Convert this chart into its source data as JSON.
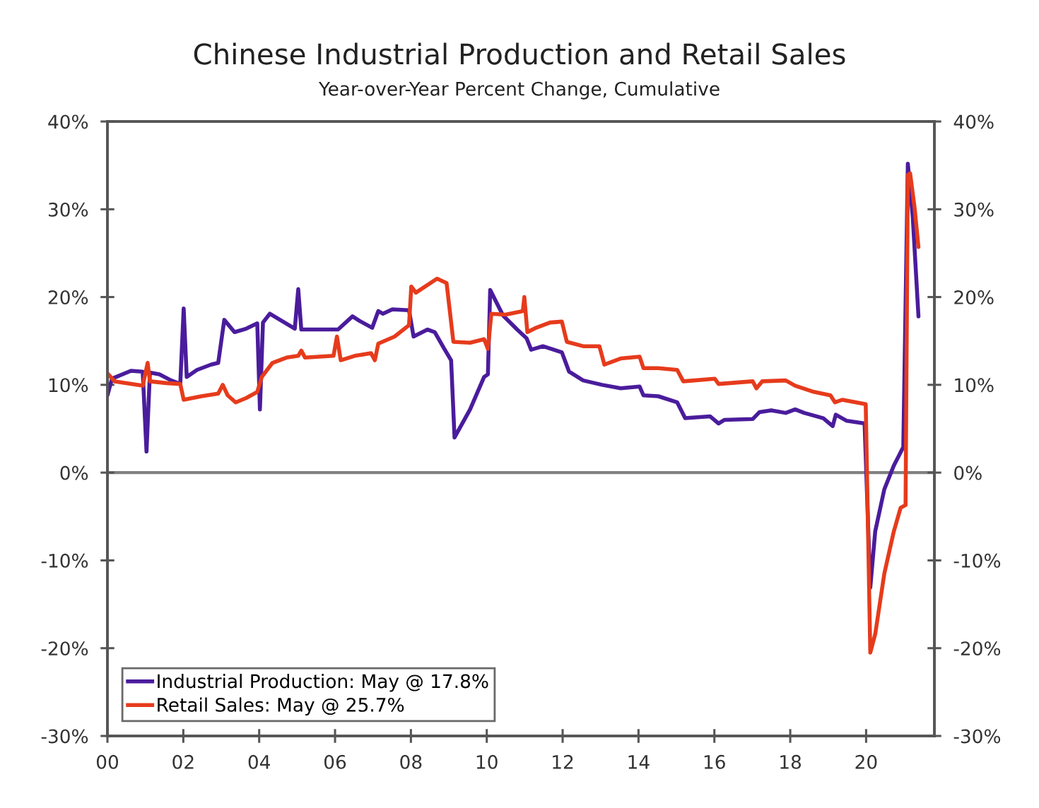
{
  "chart_data": {
    "type": "line",
    "title": "Chinese Industrial Production and Retail Sales",
    "subtitle": "Year-over-Year Percent Change, Cumulative",
    "series": [
      {
        "name": "Industrial Production: May @ 17.8%",
        "color": "#4a1c9c",
        "x": [
          2000.0,
          2000.12,
          2000.62,
          2000.93,
          2001.03,
          2001.12,
          2001.37,
          2001.68,
          2001.92,
          2002.01,
          2002.09,
          2002.36,
          2002.73,
          2002.92,
          2003.08,
          2003.35,
          2003.66,
          2003.95,
          2004.02,
          2004.1,
          2004.28,
          2004.59,
          2004.94,
          2005.03,
          2005.11,
          2005.46,
          2006.08,
          2006.46,
          2006.64,
          2006.98,
          2007.14,
          2007.26,
          2007.51,
          2007.95,
          2008.07,
          2008.44,
          2008.63,
          2008.88,
          2009.06,
          2009.15,
          2009.56,
          2009.93,
          2010.03,
          2010.09,
          2010.43,
          2010.8,
          2011.05,
          2011.17,
          2011.48,
          2011.98,
          2012.17,
          2012.54,
          2013.04,
          2013.53,
          2014.03,
          2014.13,
          2014.52,
          2015.02,
          2015.23,
          2015.89,
          2016.11,
          2016.26,
          2017.01,
          2017.19,
          2017.5,
          2017.88,
          2018.13,
          2018.37,
          2018.87,
          2019.12,
          2019.2,
          2019.49,
          2019.96,
          2020.11,
          2020.24,
          2020.48,
          2020.73,
          2020.98,
          2021.1,
          2021.23,
          2021.38
        ],
        "values": [
          8.8,
          10.7,
          11.6,
          11.5,
          2.4,
          11.4,
          11.2,
          10.5,
          10.1,
          18.7,
          10.9,
          11.7,
          12.3,
          12.5,
          17.4,
          16.0,
          16.4,
          17.0,
          7.2,
          17.1,
          18.1,
          17.3,
          16.4,
          20.9,
          16.3,
          16.3,
          16.3,
          17.8,
          17.3,
          16.5,
          18.4,
          18.1,
          18.6,
          18.5,
          15.5,
          16.3,
          16.0,
          14.1,
          12.8,
          4.0,
          7.2,
          10.9,
          11.2,
          20.8,
          17.9,
          16.3,
          15.3,
          14.0,
          14.4,
          13.7,
          11.5,
          10.5,
          10.0,
          9.6,
          9.8,
          8.8,
          8.7,
          8.0,
          6.2,
          6.4,
          5.6,
          6.0,
          6.1,
          6.9,
          7.1,
          6.8,
          7.2,
          6.8,
          6.2,
          5.3,
          6.6,
          5.9,
          5.6,
          -13.1,
          -6.7,
          -1.9,
          0.8,
          2.9,
          35.2,
          29.1,
          17.8
        ]
      },
      {
        "name": "Retail Sales: May @ 25.7%",
        "color": "#e63b1c",
        "x": [
          2000.0,
          2000.19,
          2000.62,
          2000.93,
          2001.06,
          2001.12,
          2001.55,
          2001.92,
          2002.01,
          2002.48,
          2002.92,
          2003.04,
          2003.17,
          2003.38,
          2003.66,
          2003.95,
          2004.07,
          2004.35,
          2004.72,
          2005.03,
          2005.11,
          2005.21,
          2005.96,
          2006.05,
          2006.15,
          2006.52,
          2006.95,
          2007.05,
          2007.14,
          2007.57,
          2007.95,
          2008.01,
          2008.13,
          2008.69,
          2008.94,
          2009.12,
          2009.56,
          2009.93,
          2010.03,
          2010.12,
          2010.49,
          2010.95,
          2010.99,
          2011.07,
          2011.3,
          2011.67,
          2011.98,
          2012.11,
          2012.54,
          2012.97,
          2013.1,
          2013.53,
          2014.03,
          2014.13,
          2014.52,
          2015.02,
          2015.18,
          2016.01,
          2016.11,
          2017.01,
          2017.11,
          2017.26,
          2017.88,
          2018.13,
          2018.62,
          2019.06,
          2019.18,
          2019.37,
          2019.99,
          2020.11,
          2020.24,
          2020.48,
          2020.73,
          2020.91,
          2021.04,
          2021.1,
          2021.16,
          2021.28,
          2021.38
        ],
        "values": [
          11.3,
          10.4,
          10.1,
          9.9,
          12.5,
          10.4,
          10.2,
          10.1,
          8.3,
          8.7,
          9.0,
          10.0,
          8.8,
          8.0,
          8.5,
          9.2,
          10.9,
          12.5,
          13.1,
          13.3,
          13.9,
          13.1,
          13.3,
          15.5,
          12.8,
          13.3,
          13.6,
          12.8,
          14.7,
          15.5,
          16.8,
          21.2,
          20.5,
          22.1,
          21.6,
          14.9,
          14.8,
          15.2,
          14.1,
          18.1,
          18.0,
          18.4,
          20.0,
          16.0,
          16.5,
          17.1,
          17.2,
          14.9,
          14.4,
          14.4,
          12.3,
          13.0,
          13.2,
          11.9,
          11.9,
          11.7,
          10.4,
          10.7,
          10.1,
          10.4,
          9.6,
          10.4,
          10.5,
          9.9,
          9.2,
          8.8,
          8.0,
          8.3,
          7.8,
          -20.5,
          -18.4,
          -11.5,
          -6.7,
          -4.0,
          -3.7,
          33.9,
          34.1,
          30.1,
          25.7
        ]
      }
    ],
    "xlim": [
      2000,
      2021.8
    ],
    "xticks": [
      {
        "value": 2000,
        "label": "00"
      },
      {
        "value": 2002,
        "label": "02"
      },
      {
        "value": 2004,
        "label": "04"
      },
      {
        "value": 2006,
        "label": "06"
      },
      {
        "value": 2008,
        "label": "08"
      },
      {
        "value": 2010,
        "label": "10"
      },
      {
        "value": 2012,
        "label": "12"
      },
      {
        "value": 2014,
        "label": "14"
      },
      {
        "value": 2016,
        "label": "16"
      },
      {
        "value": 2018,
        "label": "18"
      },
      {
        "value": 2020,
        "label": "20"
      }
    ],
    "ylim": [
      -30,
      40
    ],
    "yticks": [
      {
        "value": -30,
        "label": "-30%"
      },
      {
        "value": -20,
        "label": "-20%"
      },
      {
        "value": -10,
        "label": "-10%"
      },
      {
        "value": 0,
        "label": "0%"
      },
      {
        "value": 10,
        "label": "10%"
      },
      {
        "value": 20,
        "label": "20%"
      },
      {
        "value": 30,
        "label": "30%"
      },
      {
        "value": 40,
        "label": "40%"
      }
    ],
    "y2lim": [
      -30,
      40
    ],
    "y2ticks": [
      {
        "value": -30,
        "label": "-30%"
      },
      {
        "value": -20,
        "label": "-20%"
      },
      {
        "value": -10,
        "label": "-10%"
      },
      {
        "value": 0,
        "label": "0%"
      },
      {
        "value": 10,
        "label": "10%"
      },
      {
        "value": 20,
        "label": "20%"
      },
      {
        "value": 30,
        "label": "30%"
      },
      {
        "value": 40,
        "label": "40%"
      }
    ],
    "ref_lines": [
      {
        "axis": "y",
        "value": 0,
        "color": "#808080"
      }
    ],
    "legend": "bottom left",
    "line_style": "solid"
  }
}
